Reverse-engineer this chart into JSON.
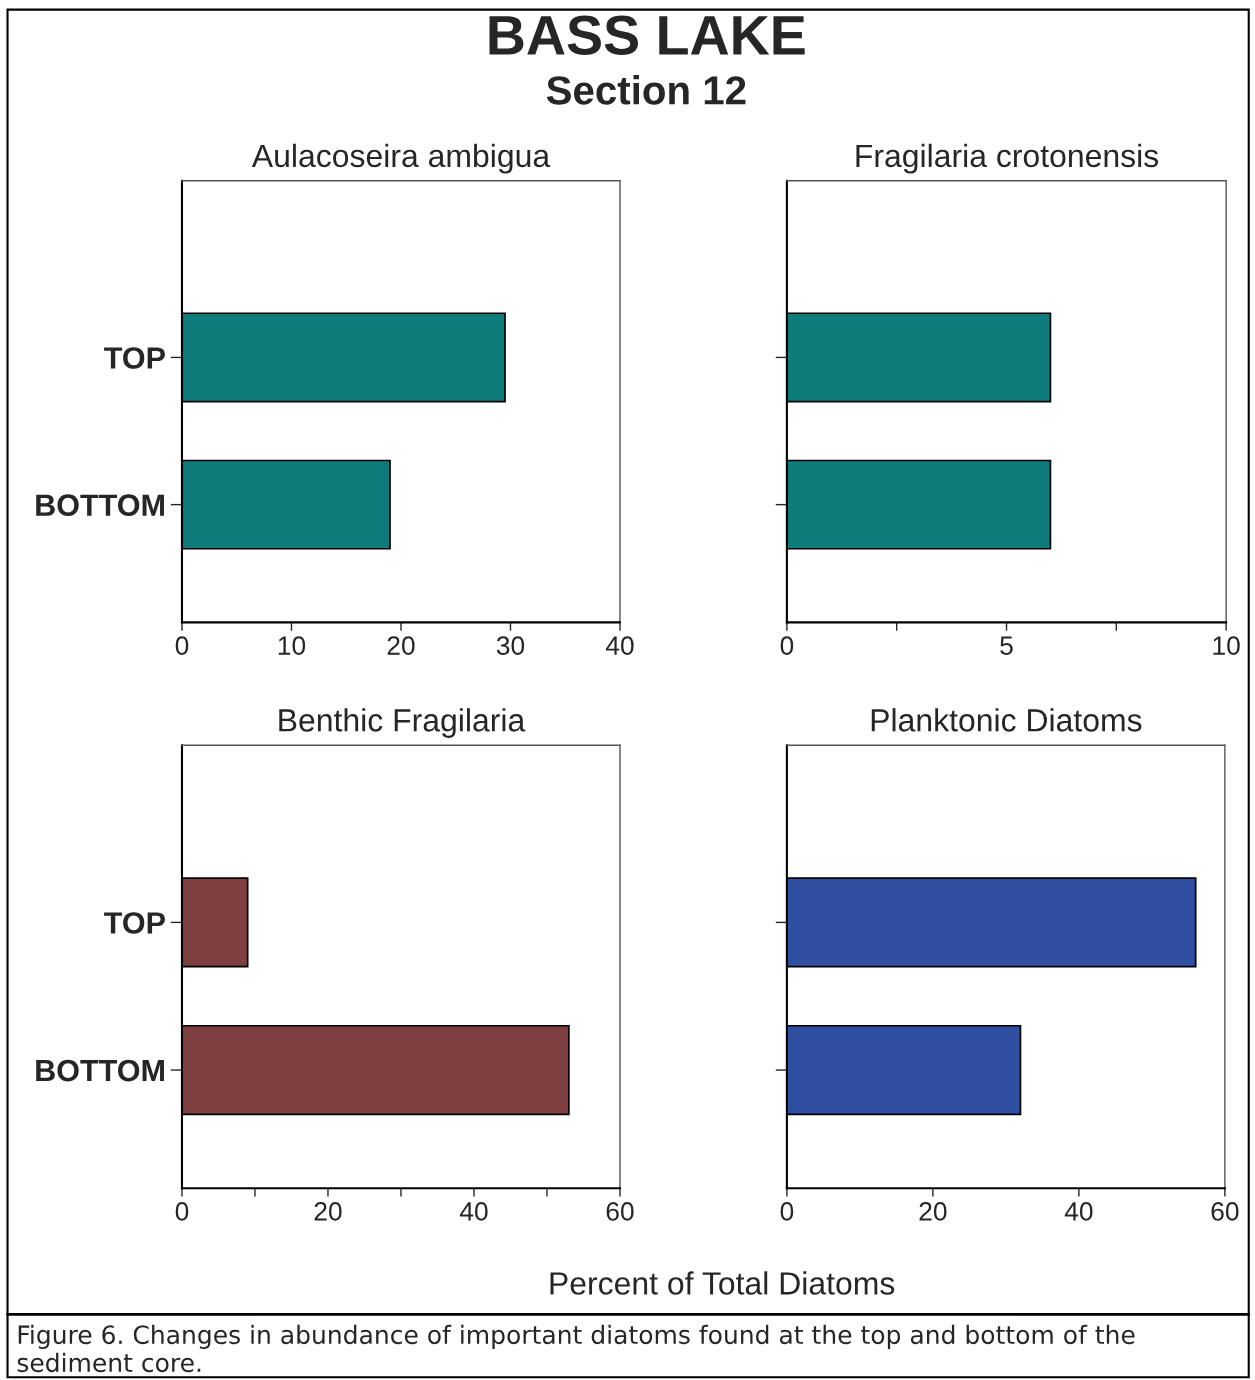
{
  "chart_data": [
    {
      "type": "bar",
      "orientation": "horizontal",
      "title": "Aulacoseira ambigua",
      "annotations": [
        "BASS LAKE",
        "Section 12"
      ],
      "categories": [
        "TOP",
        "BOTTOM"
      ],
      "values": [
        29.5,
        19
      ],
      "color": "#0e7c7b",
      "xlim": [
        0,
        40
      ],
      "xticks": [
        0,
        10,
        20,
        30,
        40
      ],
      "grid": false
    },
    {
      "type": "bar",
      "orientation": "horizontal",
      "title": "Fragilaria crotonensis",
      "categories": [
        null,
        null
      ],
      "values": [
        6,
        6
      ],
      "color": "#0e7c7b",
      "xlim": [
        0,
        10
      ],
      "xticks": [
        0,
        {
          "value": 2.5,
          "label": null
        },
        5,
        {
          "value": 7.5,
          "label": null
        },
        10
      ],
      "tick_labels": "x",
      "grid": false
    },
    {
      "type": "bar",
      "orientation": "horizontal",
      "title": "Benthic Fragilaria",
      "categories": [
        "TOP",
        "BOTTOM"
      ],
      "values": [
        9,
        53
      ],
      "color": "#7f3f40",
      "xlim": [
        0,
        60
      ],
      "xticks": [
        0,
        {
          "value": 10,
          "label": null
        },
        20,
        {
          "value": 30,
          "label": null
        },
        40,
        {
          "value": 50,
          "label": null
        },
        60
      ],
      "grid": false
    },
    {
      "type": "bar",
      "orientation": "horizontal",
      "title": "Planktonic Diatoms",
      "xlabel": "Percent of Total Diatoms",
      "annotations": [
        "Figure 6. Changes in abundance of important diatoms found at the top and bottom of the sediment core."
      ],
      "categories": [
        null,
        null
      ],
      "values": [
        56,
        32
      ],
      "color": "#2f4fa0",
      "xlim": [
        0,
        60
      ],
      "xticks": [
        0,
        20,
        40,
        60
      ],
      "tick_labels": "x",
      "grid": false
    }
  ]
}
